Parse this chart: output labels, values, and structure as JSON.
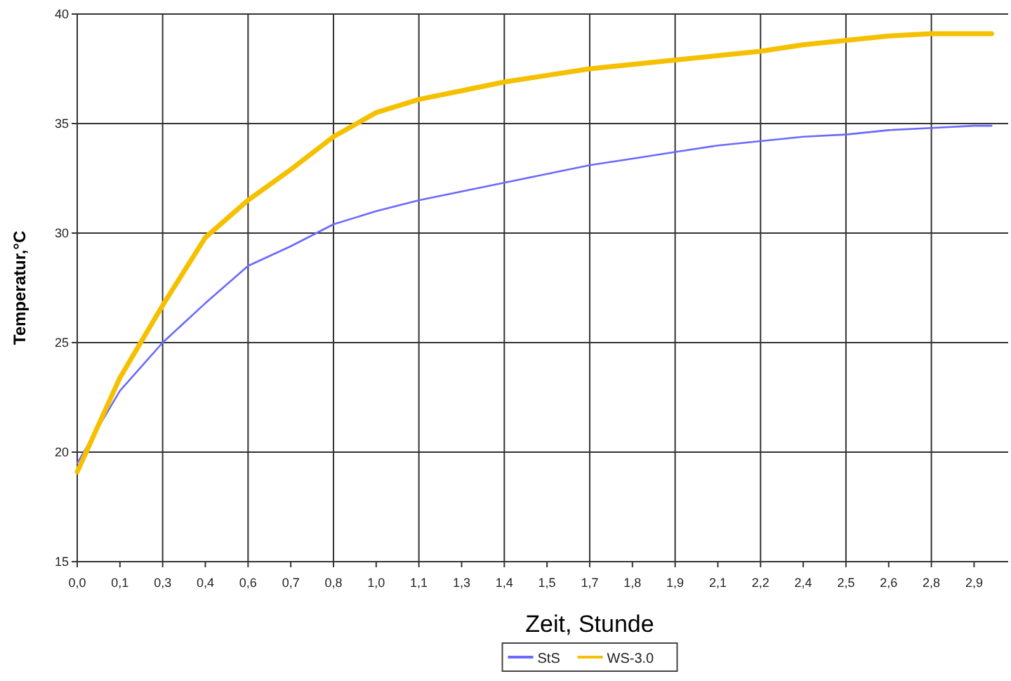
{
  "chart_data": {
    "type": "line",
    "xlabel": "Zeit, Stunde",
    "ylabel": "Temperatur,°C",
    "x": [
      0,
      0.139,
      0.278,
      0.417,
      0.556,
      0.695,
      0.834,
      0.973,
      1.112,
      1.251,
      1.39,
      1.529,
      1.668,
      1.807,
      1.946,
      2.085,
      2.224,
      2.363,
      2.502,
      2.641,
      2.78,
      2.919,
      2.976
    ],
    "series": [
      {
        "name": "StS",
        "color": "#6a6aff",
        "values": [
          19.5,
          22.8,
          25.0,
          26.8,
          28.5,
          29.4,
          30.4,
          31.0,
          31.5,
          31.9,
          32.3,
          32.7,
          33.1,
          33.4,
          33.7,
          34.0,
          34.2,
          34.4,
          34.5,
          34.7,
          34.8,
          34.9,
          34.9
        ]
      },
      {
        "name": "WS-3.0",
        "color": "#f5c000",
        "values": [
          19.1,
          23.4,
          26.7,
          29.8,
          31.5,
          32.9,
          34.4,
          35.5,
          36.1,
          36.5,
          36.9,
          37.2,
          37.5,
          37.7,
          37.9,
          38.1,
          38.3,
          38.6,
          38.8,
          39.0,
          39.1,
          39.1,
          39.1
        ]
      }
    ],
    "xlim": [
      0,
      3.03
    ],
    "ylim": [
      15,
      40
    ],
    "xticks": [
      {
        "value": 0,
        "label": "0,0"
      },
      {
        "value": 0.139,
        "label": "0,1"
      },
      {
        "value": 0.278,
        "label": "0,3"
      },
      {
        "value": 0.417,
        "label": "0,4"
      },
      {
        "value": 0.556,
        "label": "0,6"
      },
      {
        "value": 0.695,
        "label": "0,7"
      },
      {
        "value": 0.834,
        "label": "0,8"
      },
      {
        "value": 0.973,
        "label": "1,0"
      },
      {
        "value": 1.112,
        "label": "1,1"
      },
      {
        "value": 1.251,
        "label": "1,3"
      },
      {
        "value": 1.39,
        "label": "1,4"
      },
      {
        "value": 1.529,
        "label": "1,5"
      },
      {
        "value": 1.668,
        "label": "1,7"
      },
      {
        "value": 1.807,
        "label": "1,8"
      },
      {
        "value": 1.946,
        "label": "1,9"
      },
      {
        "value": 2.085,
        "label": "2,1"
      },
      {
        "value": 2.224,
        "label": "2,2"
      },
      {
        "value": 2.363,
        "label": "2,4"
      },
      {
        "value": 2.502,
        "label": "2,5"
      },
      {
        "value": 2.641,
        "label": "2,6"
      },
      {
        "value": 2.78,
        "label": "2,8"
      },
      {
        "value": 2.919,
        "label": "2,9"
      }
    ],
    "yticks": [
      15,
      20,
      25,
      30,
      35,
      40
    ],
    "grid": true,
    "legend": "bottom",
    "marker": "none",
    "line_style": "solid"
  }
}
